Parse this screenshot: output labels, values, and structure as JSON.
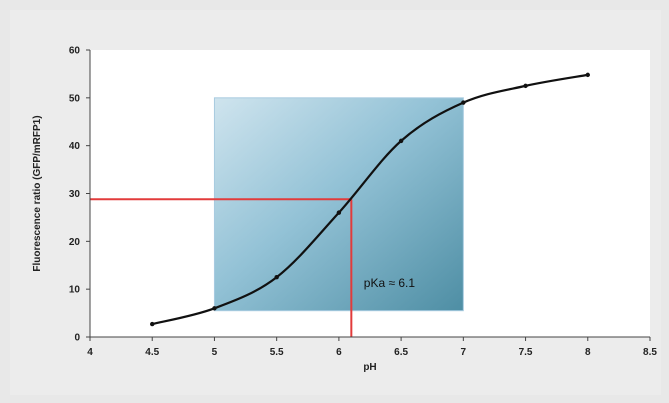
{
  "chart_data": {
    "type": "line",
    "title": "",
    "xlabel": "pH",
    "ylabel": "Fluorescence ratio (GFP/mRFP1)",
    "xlim": [
      4,
      8.5
    ],
    "ylim": [
      0,
      60
    ],
    "xticks": [
      "4",
      "4.5",
      "5",
      "5.5",
      "6",
      "6.5",
      "7",
      "7.5",
      "8",
      "8.5"
    ],
    "yticks": [
      "0",
      "10",
      "20",
      "30",
      "40",
      "50",
      "60"
    ],
    "grid": false,
    "legend": "none",
    "series": [
      {
        "x": [
          4.5,
          5.0,
          5.5,
          6.0,
          6.5,
          7.0,
          7.5,
          8.0
        ],
        "y": [
          2.7,
          6.0,
          12.5,
          26.0,
          41.0,
          49.0,
          52.5,
          54.8
        ],
        "color": "#111111"
      }
    ],
    "highlight_box": {
      "x": [
        5.0,
        7.0
      ],
      "y": [
        5.5,
        50.0
      ],
      "color": "#7fb6cc"
    },
    "pka_marker": {
      "x": 6.1,
      "y": 28.8,
      "color": "#e23b3b"
    },
    "annotation": {
      "text": "pKa ≈ 6.1",
      "x": 6.2,
      "y": 10.5
    }
  }
}
